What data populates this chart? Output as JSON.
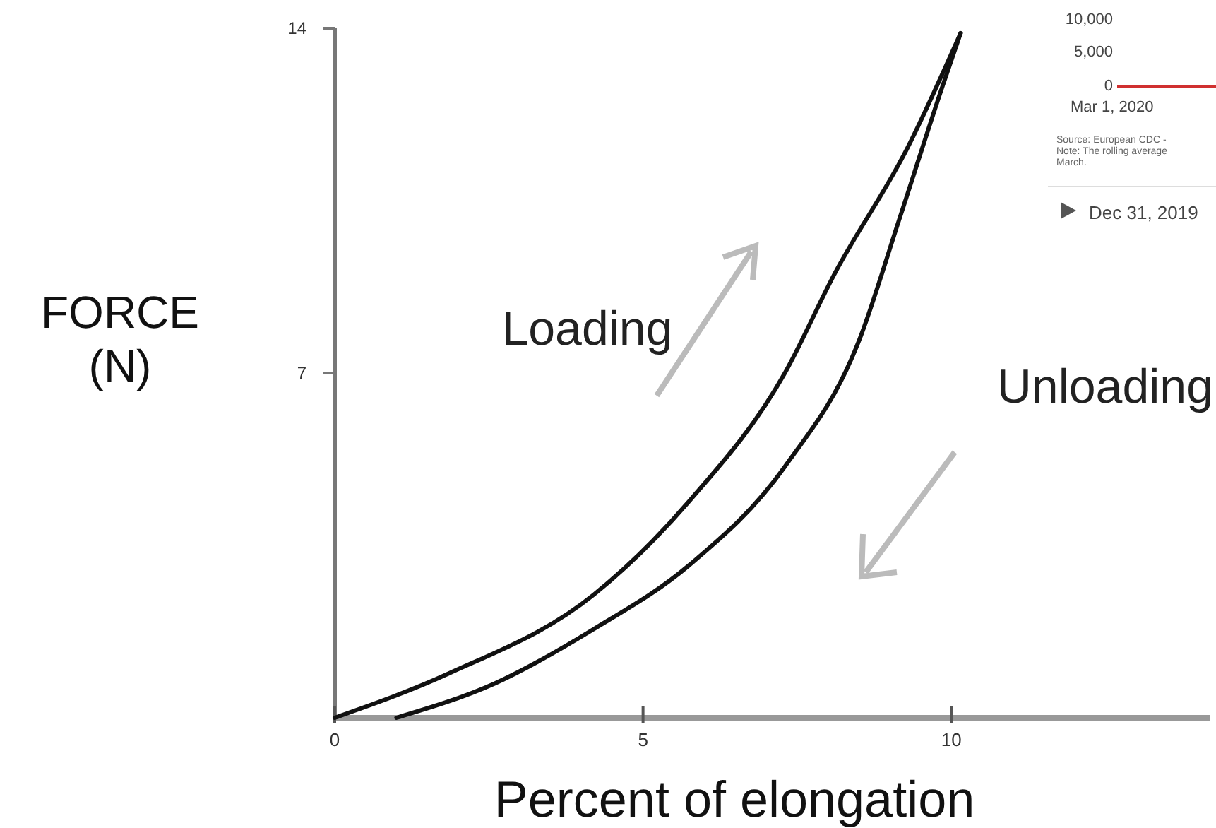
{
  "chart_data": {
    "type": "line",
    "xlabel": "Percent of elongation",
    "ylabel": "FORCE\n(N)",
    "xlim": [
      0,
      14.2
    ],
    "ylim": [
      0,
      14
    ],
    "xticks": [
      0,
      5,
      10
    ],
    "yticks": [
      7,
      14
    ],
    "grid": false,
    "marker": "none",
    "line_style": "solid",
    "series": [
      {
        "name": "Loading",
        "color": "#111111",
        "x": [
          0,
          1.85,
          4.2,
          5.75,
          7.3,
          8.1,
          9.3,
          10.15
        ],
        "values": [
          0,
          0.9,
          2.5,
          4.4,
          7.0,
          9.0,
          11.6,
          13.9
        ]
      },
      {
        "name": "Unloading",
        "color": "#111111",
        "x": [
          10.15,
          9.85,
          9.15,
          8.5,
          7.3,
          5.75,
          4.2,
          2.6,
          1.0
        ],
        "values": [
          13.9,
          12.8,
          10.1,
          7.65,
          5.1,
          3.1,
          1.8,
          0.7,
          0
        ]
      }
    ],
    "annotations": [
      "10,000",
      "5,000",
      "0",
      "Mar 1, 2020",
      "Source: European CDC -",
      "Note: The rolling average",
      "March.",
      "Dec 31, 2019"
    ]
  }
}
